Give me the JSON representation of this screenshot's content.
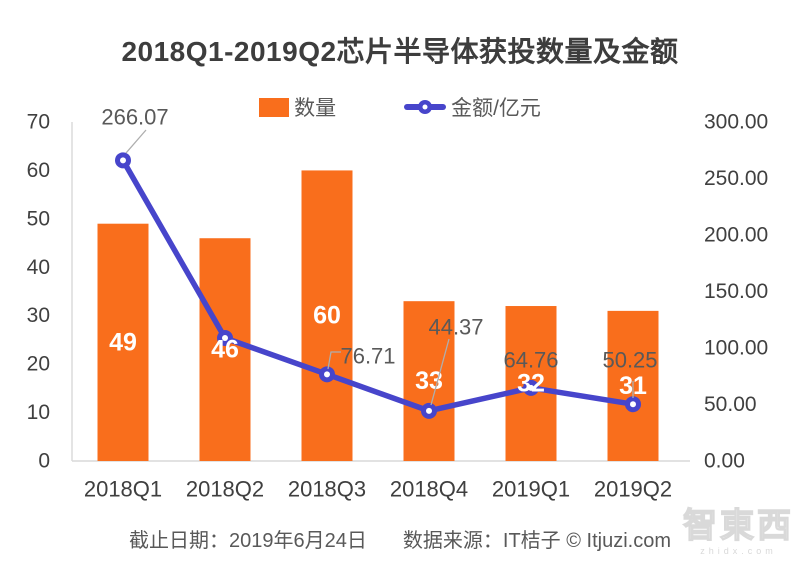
{
  "title": "2018Q1-2019Q2芯片半导体获投数量及金额",
  "legend": {
    "bar_label": "数量",
    "line_label": "金额/亿元"
  },
  "footer": {
    "deadline": "截止日期：2019年6月24日",
    "source": "数据来源：IT桔子 © Itjuzi.com"
  },
  "watermark": {
    "brand": "智東西",
    "domain": "zhidx.com"
  },
  "colors": {
    "bar": "#f96e1c",
    "line": "#4745cb",
    "axis_line": "#d9d9d9",
    "tick_text": "#404040",
    "category_text": "#3f3f3f",
    "data_label": "#595959",
    "bar_label": "#ffffff",
    "leader": "#aeaeae",
    "title_text": "#3d3d3d",
    "footer_text": "#595959",
    "watermark": "#d9d9d9"
  },
  "chart_data": {
    "type": "bar",
    "subtype": "bar+line dual-axis combo",
    "title": "2018Q1-2019Q2芯片半导体获投数量及金额",
    "categories": [
      "2018Q1",
      "2018Q2",
      "2018Q3",
      "2018Q4",
      "2019Q1",
      "2019Q2"
    ],
    "series": [
      {
        "name": "数量",
        "type": "bar",
        "axis": "left",
        "values": [
          49,
          46,
          60,
          33,
          32,
          31
        ]
      },
      {
        "name": "金额/亿元",
        "type": "line",
        "axis": "right",
        "values": [
          266.07,
          108.85,
          76.71,
          44.37,
          64.76,
          50.25
        ],
        "point_labels": [
          "266.07",
          "",
          "76.71",
          "44.37",
          "64.76",
          "50.25"
        ],
        "note": "2018Q2 point has no visible label; 108.85 estimated from marker position"
      }
    ],
    "left_axis": {
      "min": 0,
      "max": 70,
      "step": 10
    },
    "right_axis": {
      "min": 0,
      "max": 300,
      "step": 50,
      "tick_format": "0.00"
    },
    "grid": false,
    "legend_position": "top"
  }
}
